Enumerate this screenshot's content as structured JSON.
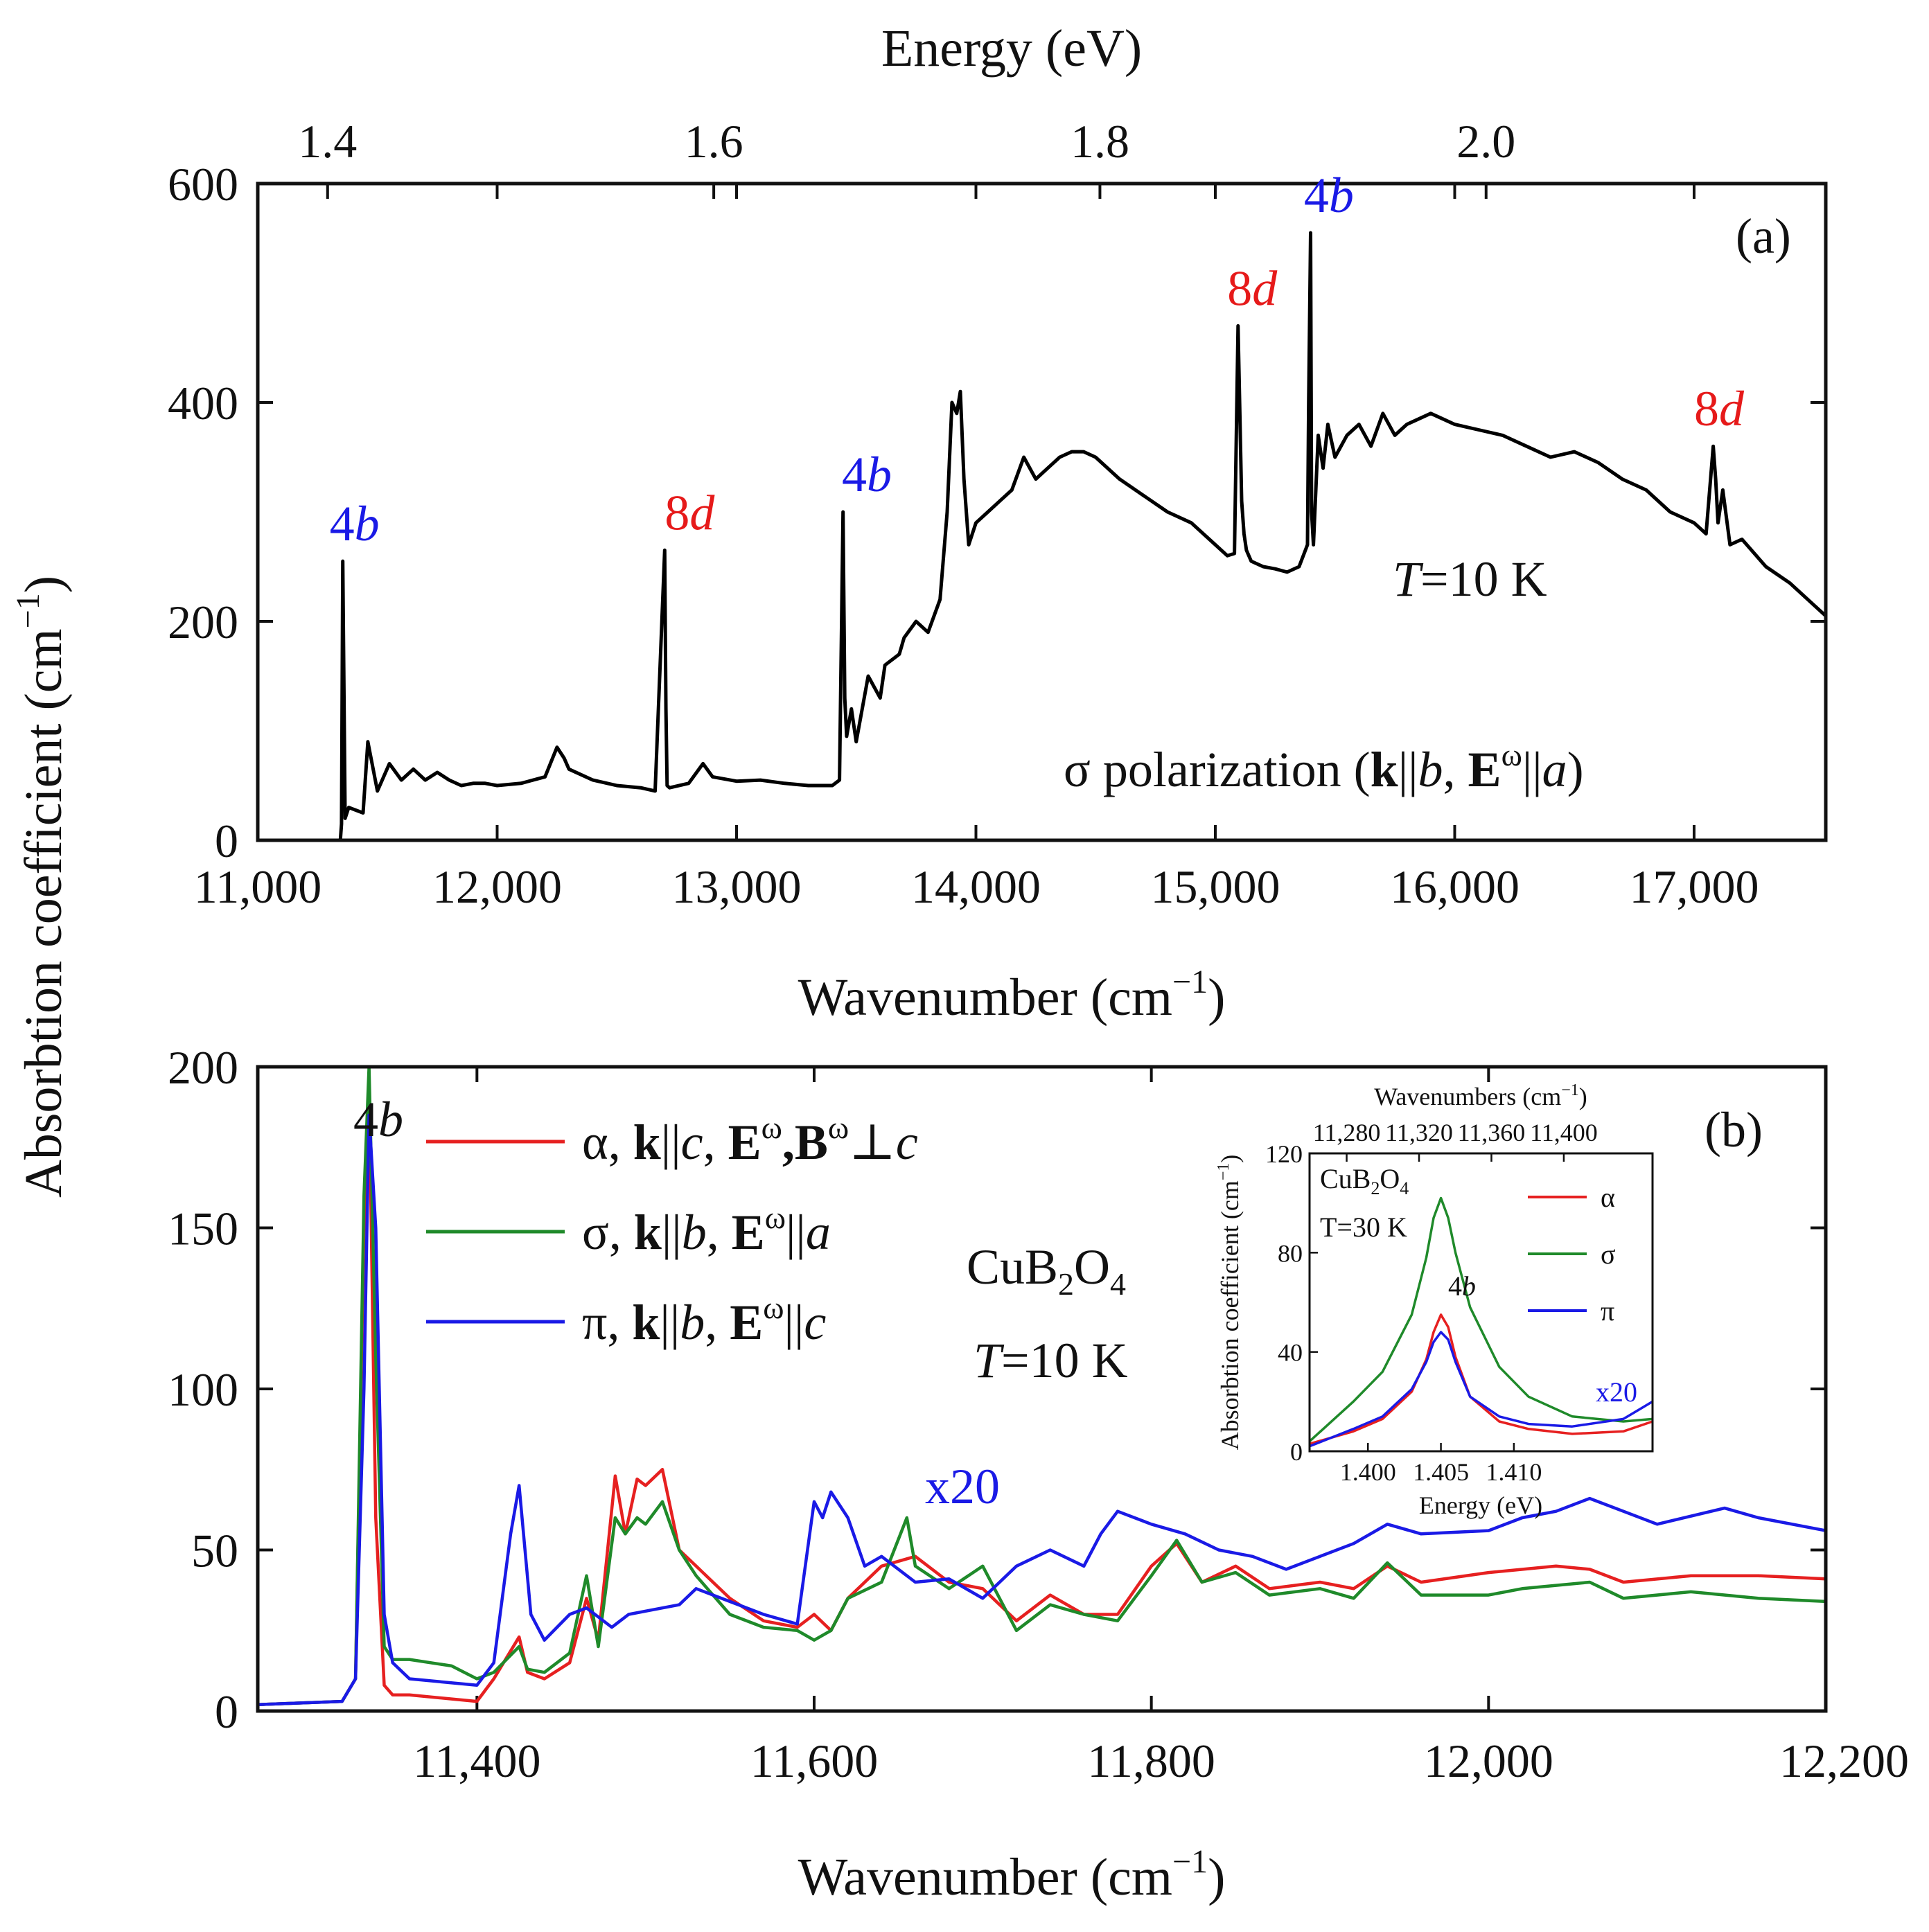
{
  "chart_data": [
    {
      "id": "a",
      "type": "line",
      "panel_label": "(a)",
      "xlabel": "Wavenumber (cm",
      "xlabel_sup": "−1",
      "xlabel_tail": ")",
      "top_xlabel": "Energy (eV)",
      "ylabel": "Absorbtion coefficient (cm",
      "ylabel_sup": "−1",
      "ylabel_tail": ")",
      "xlim": [
        11000,
        17550
      ],
      "ylim": [
        0,
        600
      ],
      "x_ticks": [
        11000,
        12000,
        13000,
        14000,
        15000,
        16000,
        17000
      ],
      "x_tick_labels": [
        "11,000",
        "12,000",
        "13,000",
        "14,000",
        "15,000",
        "16,000",
        "17,000"
      ],
      "y_ticks": [
        0,
        200,
        400,
        600
      ],
      "y_tick_labels": [
        "0",
        "200",
        "400",
        "600"
      ],
      "top_ticks": [
        1.4,
        1.6,
        1.8,
        2.0
      ],
      "top_tick_labels": [
        "1.4",
        "1.6",
        "1.8",
        "2.0"
      ],
      "temperature_label": "=10 K",
      "temperature_symbol": "T",
      "polarization_label": "σ polarization (",
      "series": [
        {
          "name": "σ",
          "color": "#000000",
          "x": [
            11000,
            11300,
            11345,
            11350,
            11355,
            11365,
            11380,
            11440,
            11460,
            11500,
            11550,
            11600,
            11650,
            11700,
            11750,
            11800,
            11850,
            11900,
            11950,
            12000,
            12100,
            12200,
            12250,
            12280,
            12300,
            12400,
            12500,
            12600,
            12660,
            12700,
            12705,
            12710,
            12720,
            12800,
            12860,
            12900,
            13000,
            13100,
            13200,
            13300,
            13400,
            13430,
            13445,
            13452,
            13460,
            13480,
            13500,
            13550,
            13600,
            13620,
            13680,
            13700,
            13750,
            13800,
            13850,
            13880,
            13900,
            13920,
            13935,
            13950,
            13970,
            14000,
            14050,
            14100,
            14150,
            14200,
            14250,
            14300,
            14350,
            14400,
            14450,
            14500,
            14600,
            14700,
            14800,
            14900,
            15000,
            15050,
            15080,
            15095,
            15110,
            15120,
            15130,
            15150,
            15200,
            15250,
            15300,
            15350,
            15385,
            15390,
            15398,
            15402,
            15410,
            15430,
            15450,
            15470,
            15500,
            15550,
            15600,
            15650,
            15700,
            15750,
            15800,
            15850,
            15900,
            15950,
            16000,
            16100,
            16200,
            16300,
            16400,
            16500,
            16600,
            16700,
            16800,
            16900,
            17000,
            17050,
            17080,
            17090,
            17100,
            17120,
            17150,
            17200,
            17300,
            17400,
            17500,
            17550
          ],
          "y": [
            0,
            0,
            0,
            15,
            255,
            20,
            30,
            25,
            90,
            45,
            70,
            55,
            65,
            55,
            62,
            55,
            50,
            52,
            52,
            50,
            52,
            58,
            85,
            75,
            65,
            55,
            50,
            48,
            45,
            265,
            120,
            50,
            48,
            52,
            70,
            58,
            54,
            55,
            52,
            50,
            50,
            55,
            300,
            130,
            95,
            120,
            90,
            150,
            130,
            160,
            170,
            185,
            200,
            190,
            220,
            300,
            400,
            390,
            410,
            330,
            270,
            290,
            300,
            310,
            320,
            350,
            330,
            340,
            350,
            355,
            355,
            350,
            330,
            315,
            300,
            290,
            270,
            260,
            262,
            470,
            310,
            280,
            265,
            255,
            250,
            248,
            245,
            250,
            270,
            400,
            555,
            300,
            270,
            370,
            340,
            380,
            350,
            370,
            380,
            360,
            390,
            370,
            380,
            385,
            390,
            385,
            380,
            375,
            370,
            360,
            350,
            355,
            345,
            330,
            320,
            300,
            290,
            280,
            360,
            330,
            290,
            320,
            270,
            275,
            250,
            235,
            215,
            205
          ]
        }
      ],
      "annotations": [
        {
          "num": "4",
          "letter": "b",
          "color": "#1a1ae6",
          "x": 11300,
          "y": 255
        },
        {
          "num": "8",
          "letter": "d",
          "color": "#e61a1a",
          "x": 12700,
          "y": 265
        },
        {
          "num": "4",
          "letter": "b",
          "color": "#1a1ae6",
          "x": 13440,
          "y": 300
        },
        {
          "num": "8",
          "letter": "d",
          "color": "#e61a1a",
          "x": 15050,
          "y": 470
        },
        {
          "num": "4",
          "letter": "b",
          "color": "#1a1ae6",
          "x": 15370,
          "y": 555
        },
        {
          "num": "8",
          "letter": "d",
          "color": "#e61a1a",
          "x": 17000,
          "y": 360
        }
      ]
    },
    {
      "id": "b",
      "type": "line",
      "panel_label": "(b)",
      "xlabel": "Wavenumber (cm",
      "xlabel_sup": "−1",
      "xlabel_tail": ")",
      "xlim": [
        11270,
        12200
      ],
      "ylim": [
        0,
        200
      ],
      "x_ticks": [
        11400,
        11600,
        11800,
        12000,
        12200
      ],
      "x_tick_labels": [
        "11,400",
        "11,600",
        "11,800",
        "12,000",
        "12,200"
      ],
      "y_ticks": [
        0,
        50,
        100,
        150,
        200
      ],
      "y_tick_labels": [
        "0",
        "50",
        "100",
        "150",
        "200"
      ],
      "peak_label_num": "4",
      "peak_label_letter": "b",
      "scale_label": "x20",
      "compound_label": "CuB",
      "compound_sub1": "2",
      "compound_mid": "O",
      "compound_sub2": "4",
      "temperature_symbol": "T",
      "temperature_label": "=10 K",
      "legend": [
        {
          "sym": "α",
          "prefix": ", ",
          "k": "k",
          "k_dir": "c",
          "e": "E",
          "sup": "ω",
          "extra": ",B",
          "extra_sup": "ω",
          "rel": "⊥",
          "axis": "c",
          "color": "#e62020"
        },
        {
          "sym": "σ",
          "prefix": ", ",
          "k": "k",
          "k_dir": "b",
          "e": "E",
          "sup": "ω",
          "rel": "||",
          "axis": "a",
          "color": "#1f8a2a"
        },
        {
          "sym": "π",
          "prefix": ", ",
          "k": "k",
          "k_dir": "b",
          "e": "E",
          "sup": "ω",
          "rel": "||",
          "axis": "c",
          "color": "#1a1ae6"
        }
      ],
      "series": [
        {
          "name": "α",
          "color": "#e62020",
          "x": [
            11270,
            11320,
            11328,
            11333,
            11336,
            11340,
            11345,
            11350,
            11360,
            11400,
            11410,
            11425,
            11430,
            11440,
            11455,
            11465,
            11472,
            11482,
            11488,
            11495,
            11500,
            11510,
            11520,
            11530,
            11550,
            11570,
            11590,
            11600,
            11610,
            11620,
            11640,
            11660,
            11680,
            11700,
            11720,
            11740,
            11760,
            11780,
            11800,
            11815,
            11830,
            11850,
            11870,
            11900,
            11920,
            11940,
            11960,
            12000,
            12040,
            12060,
            12080,
            12120,
            12160,
            12200
          ],
          "y": [
            2,
            3,
            10,
            150,
            195,
            60,
            8,
            5,
            5,
            3,
            10,
            23,
            12,
            10,
            15,
            35,
            22,
            73,
            55,
            72,
            70,
            75,
            50,
            45,
            35,
            28,
            26,
            30,
            25,
            35,
            45,
            48,
            40,
            38,
            28,
            36,
            30,
            30,
            45,
            52,
            40,
            45,
            38,
            40,
            38,
            45,
            40,
            43,
            45,
            44,
            40,
            42,
            42,
            41
          ]
        },
        {
          "name": "σ",
          "color": "#1f8a2a",
          "x": [
            11270,
            11320,
            11328,
            11333,
            11336,
            11340,
            11345,
            11350,
            11360,
            11385,
            11400,
            11410,
            11425,
            11430,
            11440,
            11455,
            11465,
            11472,
            11482,
            11488,
            11495,
            11500,
            11510,
            11520,
            11530,
            11550,
            11570,
            11590,
            11600,
            11610,
            11620,
            11640,
            11655,
            11660,
            11680,
            11700,
            11720,
            11740,
            11760,
            11780,
            11800,
            11815,
            11830,
            11850,
            11870,
            11900,
            11920,
            11940,
            11960,
            12000,
            12020,
            12060,
            12080,
            12120,
            12160,
            12200
          ],
          "y": [
            2,
            3,
            10,
            160,
            200,
            110,
            20,
            16,
            16,
            14,
            10,
            12,
            20,
            13,
            12,
            18,
            42,
            20,
            60,
            55,
            60,
            58,
            65,
            50,
            42,
            30,
            26,
            25,
            22,
            25,
            35,
            40,
            60,
            45,
            38,
            45,
            25,
            33,
            30,
            28,
            42,
            53,
            40,
            43,
            36,
            38,
            35,
            46,
            36,
            36,
            38,
            40,
            35,
            37,
            35,
            34
          ]
        },
        {
          "name": "π",
          "color": "#1a1ae6",
          "x": [
            11270,
            11320,
            11328,
            11333,
            11336,
            11340,
            11345,
            11350,
            11360,
            11400,
            11410,
            11420,
            11425,
            11432,
            11440,
            11455,
            11465,
            11470,
            11480,
            11490,
            11500,
            11520,
            11530,
            11550,
            11570,
            11590,
            11600,
            11605,
            11610,
            11620,
            11630,
            11640,
            11660,
            11680,
            11700,
            11720,
            11740,
            11760,
            11770,
            11780,
            11800,
            11820,
            11840,
            11860,
            11880,
            11900,
            11920,
            11940,
            11960,
            12000,
            12020,
            12040,
            12060,
            12080,
            12100,
            12140,
            12160,
            12200
          ],
          "y": [
            2,
            3,
            10,
            100,
            185,
            150,
            30,
            15,
            10,
            8,
            15,
            55,
            70,
            30,
            22,
            30,
            32,
            30,
            26,
            30,
            31,
            33,
            38,
            34,
            30,
            27,
            65,
            60,
            68,
            60,
            45,
            48,
            40,
            41,
            35,
            45,
            50,
            45,
            55,
            62,
            58,
            55,
            50,
            48,
            44,
            48,
            52,
            58,
            55,
            56,
            60,
            62,
            66,
            62,
            58,
            63,
            60,
            56
          ]
        }
      ],
      "inset": {
        "xlabel": "Energy (eV)",
        "top_xlabel": "Wavenumbers (cm",
        "top_xlabel_sup": "−1",
        "top_xlabel_tail": ")",
        "ylabel": "Absorbtion coefficient (cm",
        "ylabel_sup": "−1",
        "ylabel_tail": ")",
        "xlim": [
          1.396,
          1.4195
        ],
        "ylim": [
          0,
          120
        ],
        "x_ticks": [
          1.4,
          1.405,
          1.41
        ],
        "x_tick_labels": [
          "1.400",
          "1.405",
          "1.410"
        ],
        "y_ticks": [
          0,
          40,
          80,
          120
        ],
        "y_tick_labels": [
          "0",
          "40",
          "80",
          "120"
        ],
        "top_ticks": [
          11280,
          11320,
          11360,
          11400
        ],
        "top_tick_labels": [
          "11,280",
          "11,320",
          "11,360",
          "11,400"
        ],
        "compound_label": "CuB",
        "compound_sub1": "2",
        "compound_mid": "O",
        "compound_sub2": "4",
        "temperature_label": "T=30 K",
        "peak_label_num": "4",
        "peak_label_letter": "b",
        "scale_label": "x20",
        "legend": [
          {
            "name": "α",
            "color": "#e62020"
          },
          {
            "name": "σ",
            "color": "#1f8a2a"
          },
          {
            "name": "π",
            "color": "#1a1ae6"
          }
        ],
        "series": [
          {
            "name": "α",
            "color": "#e62020",
            "x": [
              1.396,
              1.399,
              1.401,
              1.403,
              1.404,
              1.4045,
              1.405,
              1.4055,
              1.406,
              1.407,
              1.409,
              1.411,
              1.414,
              1.4175,
              1.4195
            ],
            "y": [
              3,
              8,
              13,
              24,
              37,
              48,
              55,
              50,
              38,
              22,
              12,
              9,
              7,
              8,
              12
            ]
          },
          {
            "name": "σ",
            "color": "#1f8a2a",
            "x": [
              1.396,
              1.399,
              1.401,
              1.403,
              1.404,
              1.4045,
              1.405,
              1.4055,
              1.406,
              1.407,
              1.409,
              1.411,
              1.414,
              1.4175,
              1.4195
            ],
            "y": [
              4,
              20,
              32,
              55,
              78,
              94,
              102,
              94,
              80,
              58,
              34,
              22,
              14,
              12,
              13
            ]
          },
          {
            "name": "π",
            "color": "#1a1ae6",
            "x": [
              1.396,
              1.399,
              1.401,
              1.403,
              1.404,
              1.4045,
              1.405,
              1.4055,
              1.406,
              1.407,
              1.409,
              1.411,
              1.414,
              1.4175,
              1.4195
            ],
            "y": [
              2,
              9,
              14,
              25,
              36,
              44,
              48,
              45,
              36,
              22,
              14,
              11,
              10,
              13,
              20
            ]
          }
        ]
      }
    }
  ]
}
